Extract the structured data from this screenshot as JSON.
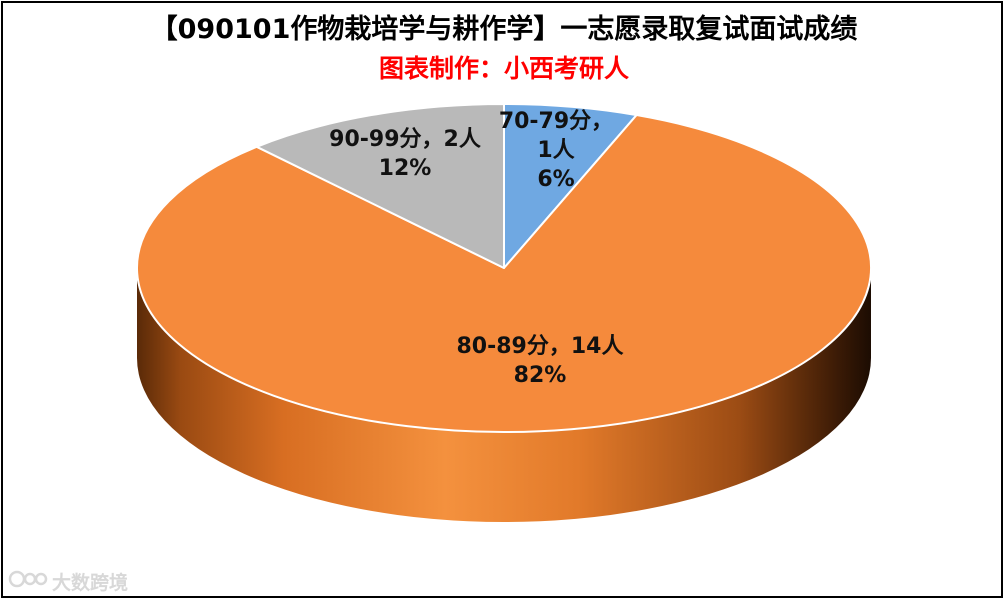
{
  "chart_data": {
    "type": "pie",
    "title": "【090101作物栽培学与耕作学】一志愿录取复试面试成绩",
    "subtitle": "图表制作：小西考研人",
    "slices": [
      {
        "label": "70-79分",
        "count": "1人",
        "percent": "6%",
        "value": 1,
        "color": "#6fa8e2"
      },
      {
        "label": "80-89分",
        "count": "14人",
        "percent": "82%",
        "value": 14,
        "color": "#f58a3c"
      },
      {
        "label": "90-99分",
        "count": "2人",
        "percent": "12%",
        "value": 2,
        "color": "#b9b9b9"
      }
    ]
  },
  "watermark": {
    "text": "大数跨境"
  }
}
